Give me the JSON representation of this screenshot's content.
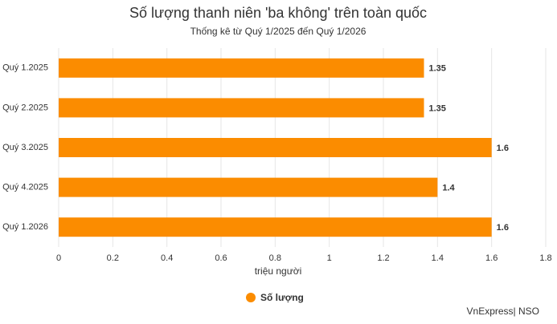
{
  "chart_data": {
    "type": "bar",
    "orientation": "horizontal",
    "title": "Số lượng thanh niên 'ba không' trên toàn quốc",
    "subtitle": "Thống kê từ Quý 1/2025 đến Quý 1/2026",
    "categories": [
      "Quý 1.2025",
      "Quý 2.2025",
      "Quý 3.2025",
      "Quý 4.2025",
      "Quý 1.2026"
    ],
    "series": [
      {
        "name": "Số lượng",
        "color": "#fb8c00",
        "values": [
          1.35,
          1.35,
          1.6,
          1.4,
          1.6
        ]
      }
    ],
    "xlabel": "triệu người",
    "xlim": [
      0,
      1.8
    ],
    "xticks": [
      0,
      0.2,
      0.4,
      0.6,
      0.8,
      1,
      1.2,
      1.4,
      1.6,
      1.8
    ],
    "grid": true,
    "legend": "bottom",
    "source": "VnExpress| NSO"
  }
}
